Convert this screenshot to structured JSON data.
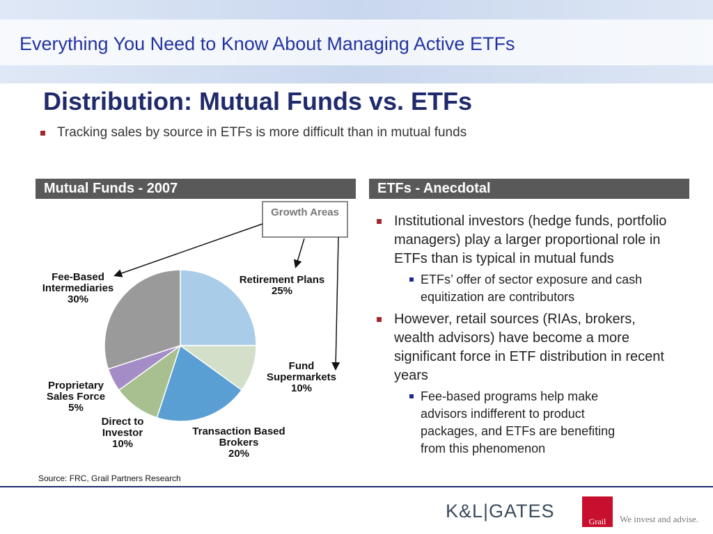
{
  "header": "Everything You Need to Know About Managing Active ETFs",
  "title": "Distribution: Mutual Funds vs. ETFs",
  "bullet": "Tracking sales by source in ETFs is more difficult than in mutual funds",
  "chart_data": {
    "type": "pie",
    "title": "Mutual Funds - 2007",
    "categories": [
      "Retirement Plans",
      "Fund Supermarkets",
      "Transaction Based Brokers",
      "Direct to Investor",
      "Proprietary Sales Force",
      "Fee-Based Intermediaries"
    ],
    "values": [
      25,
      10,
      20,
      10,
      5,
      30
    ],
    "value_labels": [
      "25%",
      "10%",
      "20%",
      "10%",
      "5%",
      "30%"
    ],
    "colors": [
      "#a9cce8",
      "#d3dfc9",
      "#5a9fd4",
      "#a8c08f",
      "#a48cc6",
      "#9a9a9a"
    ],
    "annotation": "Growth Areas",
    "source": "Source: FRC, Grail Partners Research"
  },
  "right_panel": {
    "title": "ETFs - Anecdotal",
    "items": [
      {
        "text": "Institutional investors (hedge funds, portfolio managers) play a larger proportional role in ETFs than is typical in mutual funds",
        "subitems": [
          "ETFs’ offer of sector exposure and cash equitization are contributors"
        ]
      },
      {
        "text": "However, retail sources (RIAs, brokers, wealth advisors) have become a more significant force in ETF distribution in recent years",
        "subitems": [
          "Fee-based programs help make advisors indifferent to product packages, and ETFs are benefiting from this phenomenon"
        ]
      }
    ]
  },
  "footer": {
    "logo_left": "K&L|GATES",
    "logo_mark": "Grail",
    "tagline": "We invest and advise."
  }
}
